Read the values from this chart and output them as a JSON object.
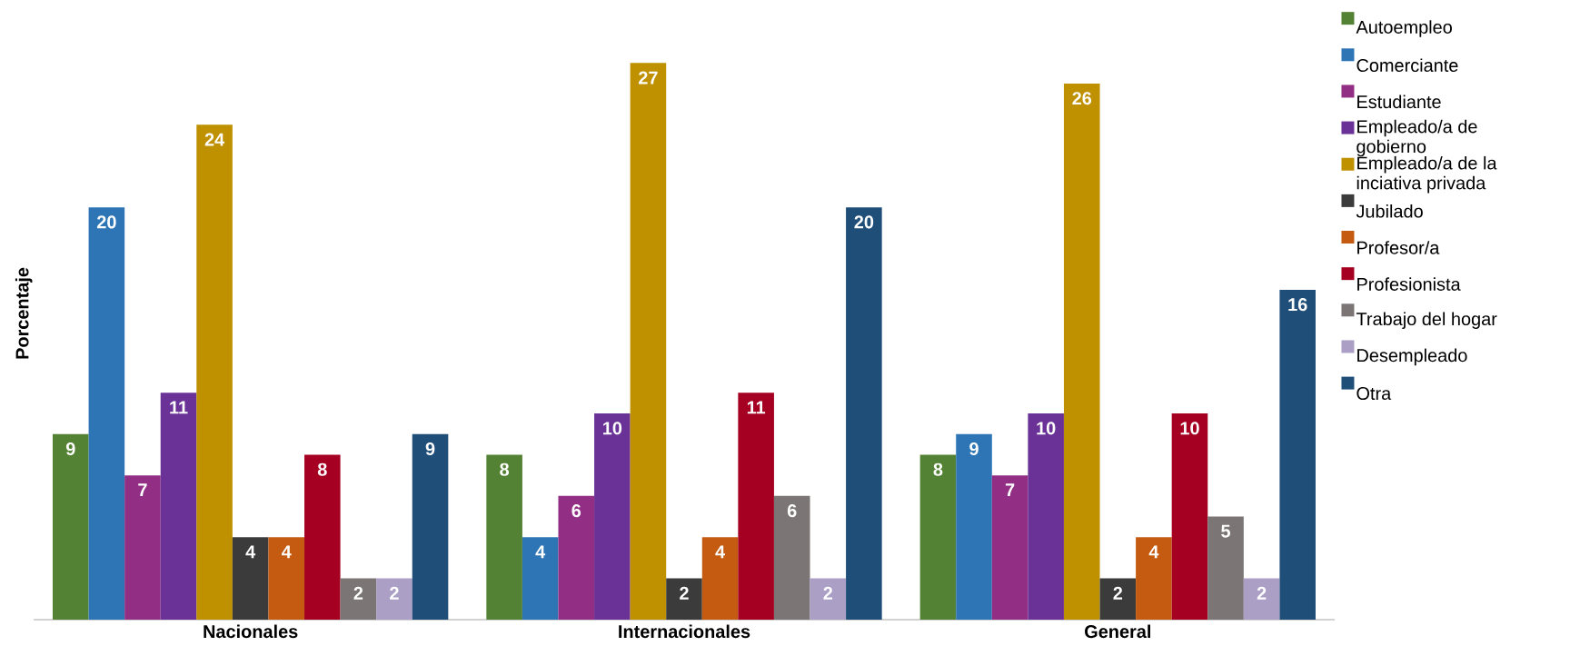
{
  "chart_data": {
    "type": "bar",
    "ylabel": "Porcentaje",
    "categories": [
      "Nacionales",
      "Internacionales",
      "General"
    ],
    "data_labels": true,
    "legend": "right",
    "series": [
      {
        "name": "Autoempleo",
        "color": "#548235",
        "values": [
          9,
          8,
          8
        ]
      },
      {
        "name": "Comerciante",
        "color": "#2e75b6",
        "values": [
          20,
          4,
          9
        ]
      },
      {
        "name": "Estudiante",
        "color": "#922e84",
        "values": [
          7,
          6,
          7
        ]
      },
      {
        "name": "Empleado/a de gobierno",
        "color": "#6a3197",
        "values": [
          11,
          10,
          10
        ]
      },
      {
        "name": "Empleado/a de la inciativa privada",
        "color": "#bf9000",
        "values": [
          24,
          27,
          26
        ]
      },
      {
        "name": "Jubilado",
        "color": "#3b3b3b",
        "values": [
          4,
          2,
          2
        ]
      },
      {
        "name": "Profesor/a",
        "color": "#c55a11",
        "values": [
          4,
          4,
          4
        ]
      },
      {
        "name": "Profesionista",
        "color": "#a50021",
        "values": [
          8,
          11,
          10
        ]
      },
      {
        "name": "Trabajo del hogar",
        "color": "#7b7575",
        "values": [
          2,
          6,
          5
        ]
      },
      {
        "name": "Desempleado",
        "color": "#ab9fc6",
        "values": [
          2,
          2,
          2
        ]
      },
      {
        "name": "Otra",
        "color": "#1f4e79",
        "values": [
          9,
          20,
          16
        ]
      }
    ]
  }
}
